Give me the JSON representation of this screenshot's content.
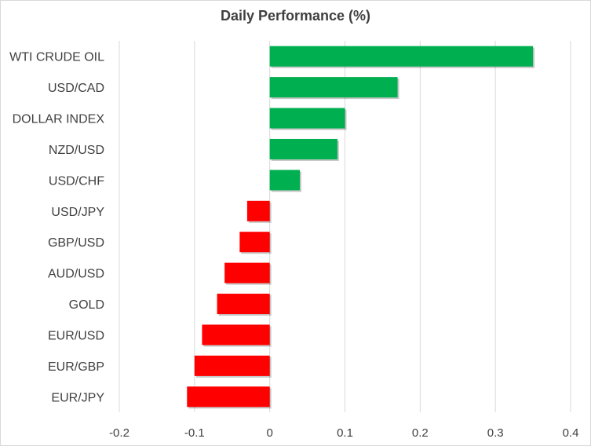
{
  "chart_data": {
    "type": "bar",
    "orientation": "horizontal",
    "title": "Daily Performance  (%)",
    "xlabel": "",
    "ylabel": "",
    "xlim": [
      -0.2,
      0.4
    ],
    "x_ticks": [
      -0.2,
      -0.1,
      0,
      0.1,
      0.2,
      0.3,
      0.4
    ],
    "x_tick_labels": [
      "-0.2",
      "-0.1",
      "0",
      "0.1",
      "0.2",
      "0.3",
      "0.4"
    ],
    "grid": true,
    "legend": "none",
    "categories": [
      "WTI CRUDE OIL",
      "USD/CAD",
      "DOLLAR INDEX",
      "NZD/USD",
      "USD/CHF",
      "USD/JPY",
      "GBP/USD",
      "AUD/USD",
      "GOLD",
      "EUR/USD",
      "EUR/GBP",
      "EUR/JPY"
    ],
    "values": [
      0.35,
      0.17,
      0.1,
      0.09,
      0.04,
      -0.03,
      -0.04,
      -0.06,
      -0.07,
      -0.09,
      -0.1,
      -0.11
    ],
    "colors": {
      "positive": "#00b050",
      "negative": "#ff0000",
      "grid": "#d9d9d9",
      "text": "#404040"
    }
  }
}
